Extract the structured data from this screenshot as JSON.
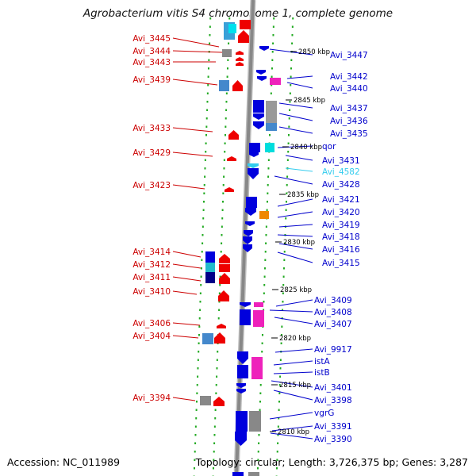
{
  "title": "Agrobacterium vitis S4 chromosome 1, complete genome",
  "footer": {
    "accession": "Accession: NC_011989",
    "info": "Topology: circular; Length: 3,726,375 bp; Genes: 3,287"
  },
  "colors": {
    "left_label": "#cc0000",
    "right_label": "#0000cc",
    "highlight_label": "#33ccee",
    "kbp_tick": "#000000",
    "dotted_track": "#22aa22",
    "backbone": "#888888"
  },
  "kbp_markers": [
    "2850 kbp",
    "2845 kbp",
    "2840 kbp",
    "2835 kbp",
    "2830 kbp",
    "2825 kbp",
    "2820 kbp",
    "2815 kbp",
    "2810 kbp"
  ],
  "left_labels": [
    "Avi_3445",
    "Avi_3444",
    "Avi_3443",
    "Avi_3439",
    "Avi_3433",
    "Avi_3429",
    "Avi_3423",
    "Avi_3414",
    "Avi_3412",
    "Avi_3411",
    "Avi_3410",
    "Avi_3406",
    "Avi_3404",
    "Avi_3394"
  ],
  "right_labels": [
    "Avi_3447",
    "Avi_3442",
    "Avi_3440",
    "Avi_3437",
    "Avi_3436",
    "Avi_3435",
    "qor",
    "Avi_3431",
    "Avi_4582",
    "Avi_3428",
    "Avi_3421",
    "Avi_3420",
    "Avi_3419",
    "Avi_3418",
    "Avi_3416",
    "Avi_3415",
    "Avi_3409",
    "Avi_3408",
    "Avi_3407",
    "Avi_9917",
    "istA",
    "istB",
    "Avi_3401",
    "Avi_3398",
    "vgrG",
    "Avi_3391",
    "Avi_3390"
  ],
  "highlighted_label": "Avi_4582"
}
